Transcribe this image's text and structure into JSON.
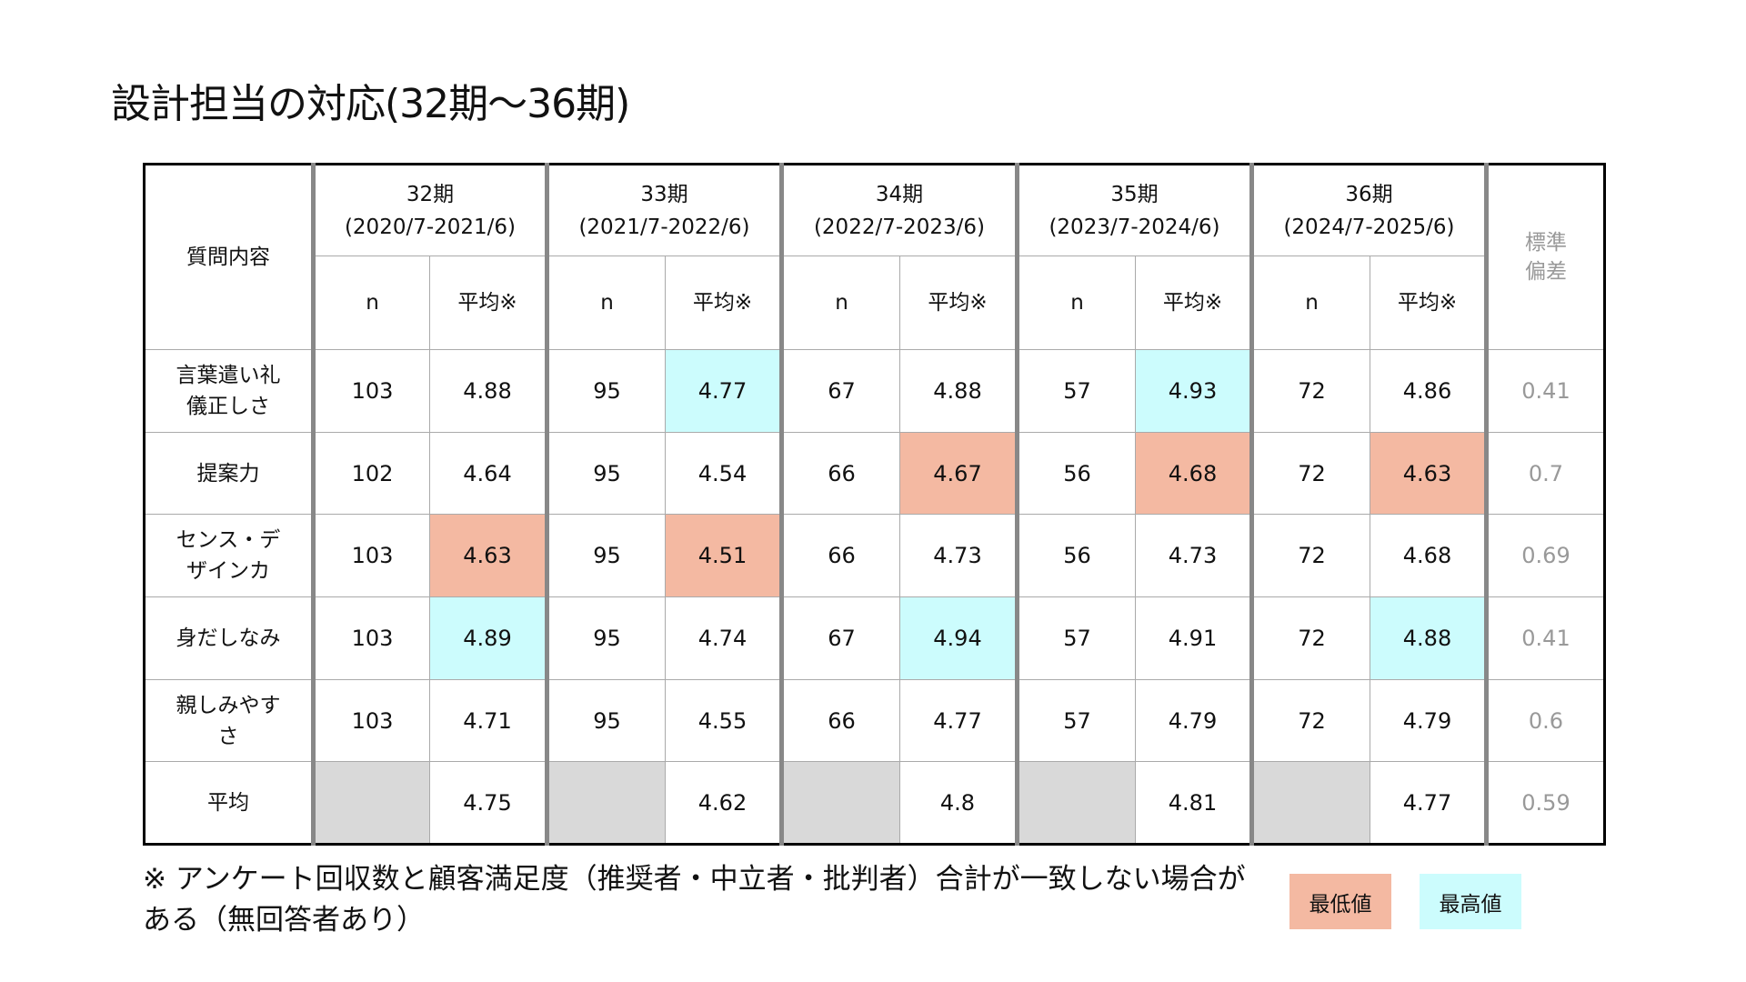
{
  "title": "設計担当の対応(32期～36期)",
  "table": {
    "question_header": "質問内容",
    "sd_header": "標準偏差",
    "n_label": "n",
    "avg_label": "平均※",
    "periods": [
      {
        "name": "32期",
        "range": "(2020/7-2021/6)"
      },
      {
        "name": "33期",
        "range": "(2021/7-2022/6)"
      },
      {
        "name": "34期",
        "range": "(2022/7-2023/6)"
      },
      {
        "name": "35期",
        "range": "(2023/7-2024/6)"
      },
      {
        "name": "36期",
        "range": "(2024/7-2025/6)"
      }
    ],
    "rows": [
      {
        "question": "言葉遣い礼儀正しさ",
        "cells": [
          [
            "103",
            "4.88",
            ""
          ],
          [
            "95",
            "4.77",
            "hi"
          ],
          [
            "67",
            "4.88",
            ""
          ],
          [
            "57",
            "4.93",
            "hi"
          ],
          [
            "72",
            "4.86",
            ""
          ]
        ],
        "sd": "0.41"
      },
      {
        "question": "提案力",
        "cells": [
          [
            "102",
            "4.64",
            ""
          ],
          [
            "95",
            "4.54",
            ""
          ],
          [
            "66",
            "4.67",
            "lo"
          ],
          [
            "56",
            "4.68",
            "lo"
          ],
          [
            "72",
            "4.63",
            "lo"
          ]
        ],
        "sd": "0.7"
      },
      {
        "question": "センス・デザインカ",
        "cells": [
          [
            "103",
            "4.63",
            "lo"
          ],
          [
            "95",
            "4.51",
            "lo"
          ],
          [
            "66",
            "4.73",
            ""
          ],
          [
            "56",
            "4.73",
            ""
          ],
          [
            "72",
            "4.68",
            ""
          ]
        ],
        "sd": "0.69"
      },
      {
        "question": "身だしなみ",
        "cells": [
          [
            "103",
            "4.89",
            "hi"
          ],
          [
            "95",
            "4.74",
            ""
          ],
          [
            "67",
            "4.94",
            "hi"
          ],
          [
            "57",
            "4.91",
            ""
          ],
          [
            "72",
            "4.88",
            "hi"
          ]
        ],
        "sd": "0.41"
      },
      {
        "question": "親しみやすさ",
        "cells": [
          [
            "103",
            "4.71",
            ""
          ],
          [
            "95",
            "4.55",
            ""
          ],
          [
            "66",
            "4.77",
            ""
          ],
          [
            "57",
            "4.79",
            ""
          ],
          [
            "72",
            "4.79",
            ""
          ]
        ],
        "sd": "0.6"
      },
      {
        "question": "平均",
        "cells": [
          [
            "",
            "4.75",
            "avg"
          ],
          [
            "",
            "4.62",
            "avg"
          ],
          [
            "",
            "4.8",
            "avg"
          ],
          [
            "",
            "4.81",
            "avg"
          ],
          [
            "",
            "4.77",
            "avg"
          ]
        ],
        "sd": "0.59"
      }
    ]
  },
  "footnote": "※ アンケート回収数と顧客満足度（推奨者・中立者・批判者）合計が一致しない場合がある（無回答者あり）",
  "legend": {
    "low": "最低値",
    "high": "最高値"
  },
  "colors": {
    "low": "#F4B9A2",
    "high": "#CCFCFD",
    "na": "#D9D9D9"
  }
}
